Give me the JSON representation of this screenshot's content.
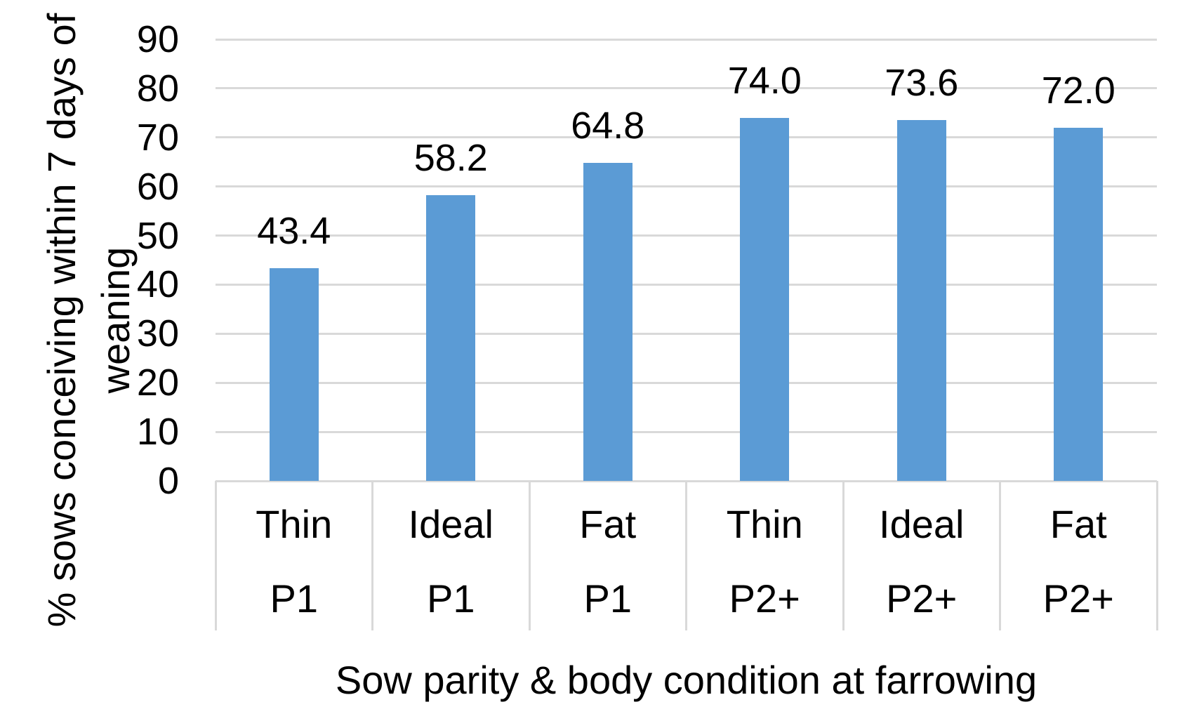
{
  "chart_data": {
    "type": "bar",
    "title": "",
    "xlabel": "Sow parity & body condition at farrowing",
    "ylabel": "% sows conceiving within 7 days of weaning",
    "ylabel_lines": [
      "% sows conceiving within 7 days of",
      "weaning"
    ],
    "categories": [
      {
        "condition": "Thin",
        "parity": "P1"
      },
      {
        "condition": "Ideal",
        "parity": "P1"
      },
      {
        "condition": "Fat",
        "parity": "P1"
      },
      {
        "condition": "Thin",
        "parity": "P2+"
      },
      {
        "condition": "Ideal",
        "parity": "P2+"
      },
      {
        "condition": "Fat",
        "parity": "P2+"
      }
    ],
    "values": [
      43.4,
      58.2,
      64.8,
      74.0,
      73.6,
      72.0
    ],
    "value_labels": [
      "43.4",
      "58.2",
      "64.8",
      "74.0",
      "73.6",
      "72.0"
    ],
    "ylim": [
      0,
      90
    ],
    "yticks": [
      0,
      10,
      20,
      30,
      40,
      50,
      60,
      70,
      80,
      90
    ],
    "grid": true,
    "legend": false,
    "colors": {
      "bar": "#5B9BD5",
      "gridline": "#D9D9D9",
      "axis_line": "#D9D9D9",
      "divider": "#D9D9D9",
      "text": "#000000",
      "background": "#FFFFFF"
    }
  }
}
